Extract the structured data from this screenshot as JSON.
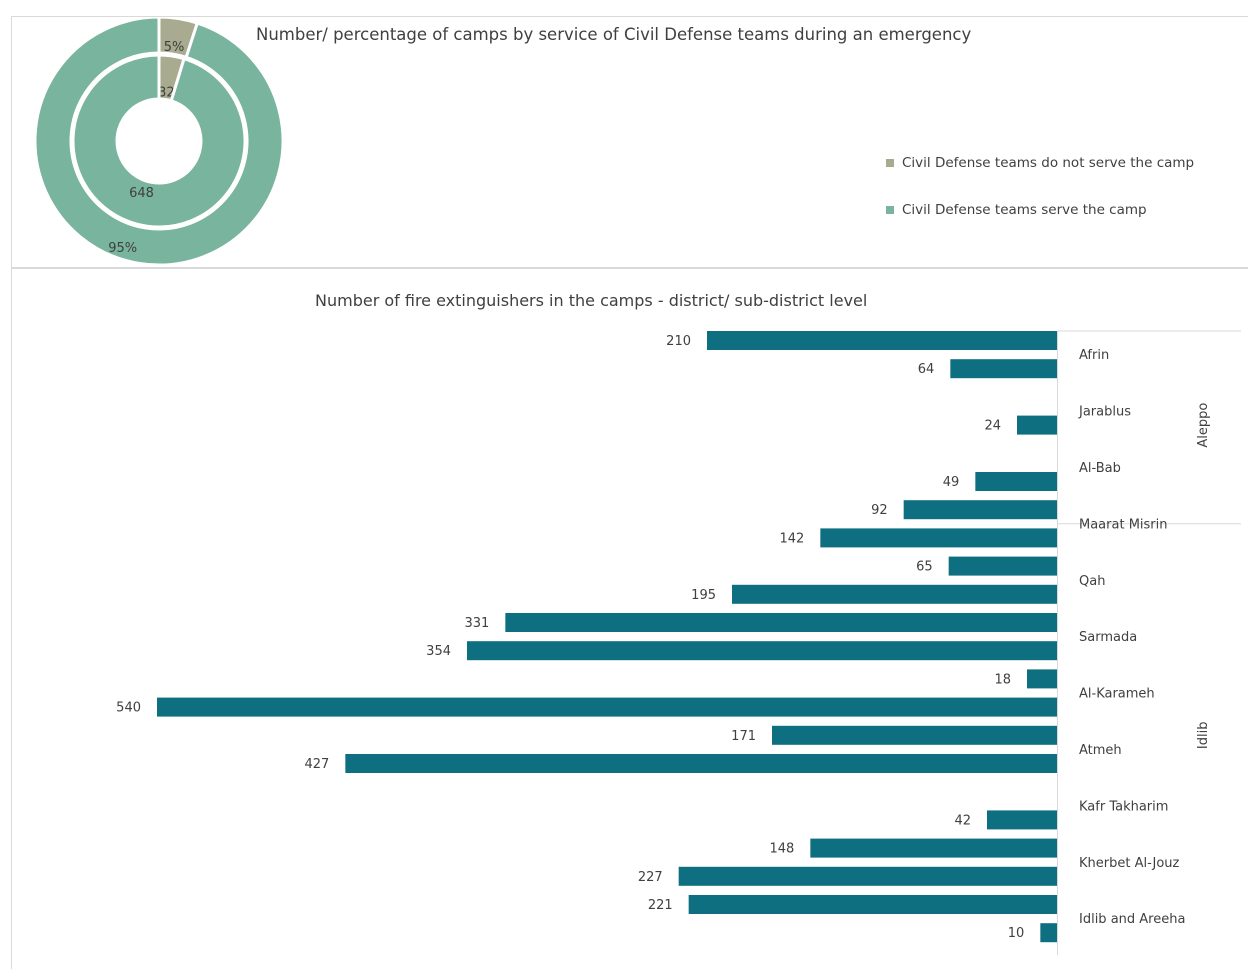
{
  "chart_data": [
    {
      "type": "pie",
      "subtype": "double-donut",
      "title": "Number/ percentage of camps by service of Civil Defense teams during an emergency",
      "categories": [
        "Civil Defense teams do not serve the camp",
        "Civil Defense teams serve the camp"
      ],
      "series": [
        {
          "ring": "inner",
          "values": [
            32,
            648
          ],
          "labels": [
            "32",
            "648"
          ]
        },
        {
          "ring": "outer",
          "values": [
            5,
            95
          ],
          "labels": [
            "5%",
            "95%"
          ]
        }
      ],
      "colors": [
        "#a8ab8f",
        "#79b49e"
      ],
      "legend_position": "right"
    },
    {
      "type": "bar",
      "orientation": "horizontal",
      "direction": "reversed",
      "title": "Number of fire extinguishers in the camps - district/ sub-district level",
      "bar_color": "#0e6f80",
      "xlim": [
        0,
        560
      ],
      "values": [
        210,
        64,
        24,
        49,
        92,
        142,
        65,
        195,
        331,
        354,
        18,
        540,
        171,
        427,
        42,
        148,
        227,
        221,
        10
      ],
      "category_labels": [
        {
          "label": "Afrin",
          "row": 1
        },
        {
          "label": "Jarablus",
          "row": 3
        },
        {
          "label": "Al-Bab",
          "row": 5
        },
        {
          "label": "Maarat Misrin",
          "row": 7
        },
        {
          "label": "Qah",
          "row": 9
        },
        {
          "label": "Sarmada",
          "row": 11
        },
        {
          "label": "Al-Karameh",
          "row": 13
        },
        {
          "label": "Atmeh",
          "row": 15
        },
        {
          "label": "Kafr Takharim",
          "row": 17
        },
        {
          "label": "Kherbet Al-Jouz",
          "row": 19
        },
        {
          "label": "Idlib and Areeha",
          "row": 21
        }
      ],
      "groups": [
        {
          "label": "Aleppo",
          "first_row": 0,
          "last_row": 6
        },
        {
          "label": "Idlib",
          "first_row": 7,
          "last_row": 21
        }
      ],
      "rows": [
        0,
        1,
        3,
        5,
        6,
        7,
        8,
        9,
        10,
        11,
        12,
        13,
        14,
        15,
        17,
        18,
        19,
        20,
        21
      ]
    }
  ]
}
